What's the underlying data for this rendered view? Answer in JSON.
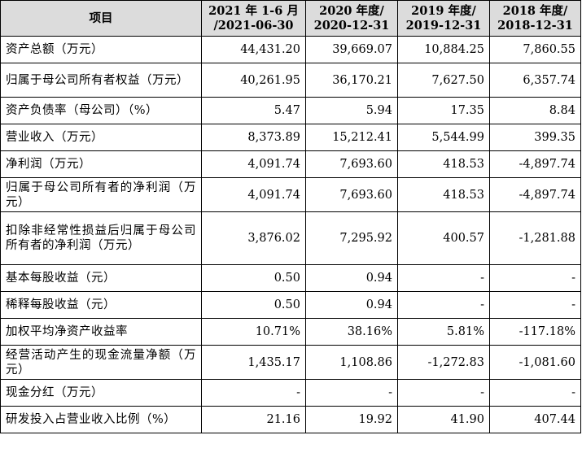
{
  "table": {
    "header": {
      "item": "项目",
      "columns": [
        {
          "line1": "2021 年 1-6 月",
          "line2": "/2021-06-30"
        },
        {
          "line1": "2020 年度/",
          "line2": "2020-12-31"
        },
        {
          "line1": "2019 年度/",
          "line2": "2019-12-31"
        },
        {
          "line1": "2018 年度/",
          "line2": "2018-12-31"
        }
      ]
    },
    "rows": [
      {
        "label": "资产总额（万元）",
        "values": [
          "44,431.20",
          "39,669.07",
          "10,884.25",
          "7,860.55"
        ]
      },
      {
        "label": "归属于母公司所有者权益（万元）",
        "values": [
          "40,261.95",
          "36,170.21",
          "7,627.50",
          "6,357.74"
        ]
      },
      {
        "label": "资产负债率（母公司）（%）",
        "values": [
          "5.47",
          "5.94",
          "17.35",
          "8.84"
        ]
      },
      {
        "label": "营业收入（万元）",
        "values": [
          "8,373.89",
          "15,212.41",
          "5,544.99",
          "399.35"
        ]
      },
      {
        "label": "净利润（万元）",
        "values": [
          "4,091.74",
          "7,693.60",
          "418.53",
          "-4,897.74"
        ]
      },
      {
        "label": "归属于母公司所有者的净利润（万元）",
        "values": [
          "4,091.74",
          "7,693.60",
          "418.53",
          "-4,897.74"
        ]
      },
      {
        "label": "扣除非经常性损益后归属于母公司所有者的净利润（万元）",
        "values": [
          "3,876.02",
          "7,295.92",
          "400.57",
          "-1,281.88"
        ]
      },
      {
        "label": "基本每股收益（元）",
        "values": [
          "0.50",
          "0.94",
          "-",
          "-"
        ]
      },
      {
        "label": "稀释每股收益（元）",
        "values": [
          "0.50",
          "0.94",
          "-",
          "-"
        ]
      },
      {
        "label": "加权平均净资产收益率",
        "values": [
          "10.71%",
          "38.16%",
          "5.81%",
          "-117.18%"
        ]
      },
      {
        "label": "经营活动产生的现金流量净额（万元）",
        "values": [
          "1,435.17",
          "1,108.86",
          "-1,272.83",
          "-1,081.60"
        ]
      },
      {
        "label": "现金分红（万元）",
        "values": [
          "-",
          "-",
          "-",
          "-"
        ]
      },
      {
        "label": "研发投入占营业收入比例（%）",
        "values": [
          "21.16",
          "19.92",
          "41.90",
          "407.44"
        ]
      }
    ]
  }
}
